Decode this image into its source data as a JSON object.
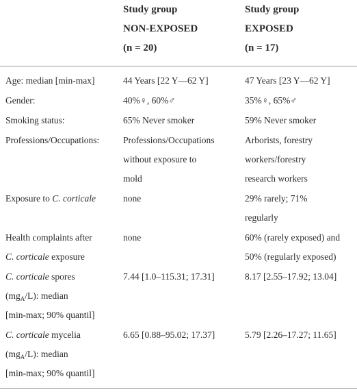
{
  "header": [
    [
      "Study group",
      "NON-EXPOSED",
      "(n = 20)"
    ],
    [
      "Study group",
      "EXPOSED",
      "(n = 17)"
    ]
  ],
  "rows": [
    [
      [
        "Age: median [min-max]"
      ],
      [
        "44 Years [22 Y—62 Y]"
      ],
      [
        "47 Years [23 Y—62 Y]"
      ]
    ],
    [
      [
        "Gender:"
      ],
      [
        "40%♀, 60%♂"
      ],
      [
        "35%♀, 65%♂"
      ]
    ],
    [
      [
        "Smoking status:"
      ],
      [
        "65% Never smoker"
      ],
      [
        "59% Never smoker"
      ]
    ],
    [
      [
        "Professions/Occupations:"
      ],
      [
        "Professions/Occupations",
        "without exposure to",
        "mold"
      ],
      [
        "Arborists, forestry",
        "workers/forestry",
        "research workers"
      ]
    ],
    [
      [
        [
          "Exposure to ",
          {
            "text": "C. corticale",
            "italic": true
          }
        ]
      ],
      [
        "none"
      ],
      [
        "29% rarely; 71%",
        "regularly"
      ]
    ],
    [
      [
        "Health complaints after",
        [
          {
            "text": "C. corticale",
            "italic": true
          },
          " exposure"
        ]
      ],
      [
        "none"
      ],
      [
        "60% (rarely exposed) and",
        "50% (regularly exposed)"
      ]
    ],
    [
      [
        [
          {
            "text": "C. corticale",
            "italic": true
          },
          " spores"
        ],
        [
          "(mg",
          {
            "text": "A",
            "sub": true
          },
          "/L): median"
        ],
        "[min-max; 90% quantil]"
      ],
      [
        "7.44 [1.0–115.31; 17.31]"
      ],
      [
        "8.17 [2.55–17.92; 13.04]"
      ]
    ],
    [
      [
        [
          {
            "text": "C. corticale",
            "italic": true
          },
          " mycelia"
        ],
        [
          "(mg",
          {
            "text": "A",
            "sub": true
          },
          "/L): median"
        ],
        "[min-max; 90% quantil]"
      ],
      [
        "6.65 [0.88–95.02; 17.37]"
      ],
      [
        "5.79 [2.26–17.27; 11.65]"
      ]
    ]
  ]
}
